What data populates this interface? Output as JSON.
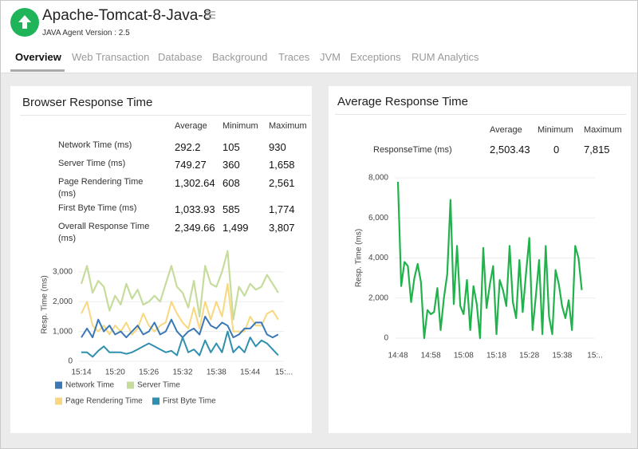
{
  "header": {
    "title": "Apache-Tomcat-8-Java-8",
    "subtitle": "JAVA Agent Version : 2.5"
  },
  "tabs": [
    "Overview",
    "Web Transaction",
    "Database",
    "Background",
    "Traces",
    "JVM",
    "Exceptions",
    "RUM Analytics"
  ],
  "panels": [
    {
      "title": "Browser Response Time",
      "table": {
        "columns": [
          "Average",
          "Minimum",
          "Maximum"
        ],
        "rows": [
          [
            "Network Time (ms)",
            "292.2",
            "105",
            "930"
          ],
          [
            "Server Time (ms)",
            "749.27",
            "360",
            "1,658"
          ],
          [
            "Page Rendering Time (ms)",
            "1,302.64",
            "608",
            "2,561"
          ],
          [
            "First Byte Time (ms)",
            "1,033.93",
            "585",
            "1,774"
          ],
          [
            "Overall Response Time (ms)",
            "2,349.66",
            "1,499",
            "3,807"
          ]
        ]
      }
    },
    {
      "title": "Average Response Time",
      "table": {
        "columns": [
          "Average",
          "Minimum",
          "Maximum"
        ],
        "rows": [
          [
            "ResponseTime (ms)",
            "2,503.43",
            "0",
            "7,815"
          ]
        ]
      }
    }
  ],
  "chart_data": [
    {
      "type": "line",
      "y_label": "Resp. Time (ms)",
      "categories": [
        "15:14",
        null,
        null,
        null,
        null,
        null,
        "15:20",
        null,
        null,
        null,
        null,
        null,
        "15:26",
        null,
        null,
        null,
        null,
        null,
        "15:32",
        null,
        null,
        null,
        null,
        null,
        "15:38",
        null,
        null,
        null,
        null,
        null,
        "15:44",
        null,
        null,
        null,
        null,
        null,
        "15:..."
      ],
      "series": [
        {
          "name": "Network Time",
          "color": "#3b78b4",
          "values": [
            800,
            1100,
            800,
            1400,
            1000,
            1200,
            900,
            1000,
            800,
            1000,
            1200,
            900,
            1000,
            1300,
            900,
            1000,
            1400,
            1000,
            800,
            1000,
            1100,
            900,
            1500,
            1200,
            1100,
            1300,
            1200,
            800,
            900,
            1100,
            1100,
            1300,
            1300,
            900,
            800,
            900,
            null
          ]
        },
        {
          "name": "Server Time",
          "color": "#c6dc9c",
          "values": [
            2600,
            3200,
            2300,
            2700,
            2500,
            1700,
            2200,
            1900,
            2600,
            2100,
            2400,
            1900,
            2000,
            2200,
            2000,
            2600,
            3200,
            2500,
            2300,
            1800,
            2700,
            1500,
            3200,
            2600,
            2500,
            3000,
            3700,
            1400,
            2500,
            2200,
            2600,
            2400,
            2500,
            2900,
            2600,
            2300,
            null
          ]
        },
        {
          "name": "Page Rendering Time",
          "color": "#f8d77f",
          "values": [
            1600,
            2000,
            1200,
            1000,
            1200,
            900,
            1200,
            1000,
            1300,
            900,
            1100,
            1600,
            1200,
            1000,
            1200,
            1300,
            2000,
            1600,
            1300,
            1100,
            1800,
            1100,
            2000,
            1400,
            2000,
            1500,
            2600,
            1000,
            1000,
            1000,
            1500,
            1200,
            1200,
            1600,
            1700,
            1400,
            null
          ]
        },
        {
          "name": "First Byte Time",
          "color": "#2f8fae",
          "values": [
            300,
            300,
            150,
            350,
            500,
            300,
            300,
            300,
            250,
            300,
            400,
            500,
            600,
            500,
            400,
            300,
            350,
            200,
            800,
            300,
            400,
            200,
            700,
            300,
            600,
            300,
            1000,
            300,
            500,
            300,
            800,
            500,
            700,
            600,
            400,
            200,
            null
          ]
        }
      ],
      "ylim": [
        0,
        3800
      ],
      "yticks": [
        0,
        {
          "value": 1000,
          "label": "1,000"
        },
        {
          "value": 2000,
          "label": "2,000"
        },
        {
          "value": 3000,
          "label": "3,000"
        }
      ],
      "grid": true
    },
    {
      "type": "line",
      "y_label": "Resp. Time (ms)",
      "categories": [
        "14:48",
        null,
        null,
        null,
        null,
        null,
        null,
        null,
        null,
        null,
        "14:58",
        null,
        null,
        null,
        null,
        null,
        null,
        null,
        null,
        null,
        "15:08",
        null,
        null,
        null,
        null,
        null,
        null,
        null,
        null,
        null,
        "15:18",
        null,
        null,
        null,
        null,
        null,
        null,
        null,
        null,
        null,
        "15:28",
        null,
        null,
        null,
        null,
        null,
        null,
        null,
        null,
        null,
        "15:38",
        null,
        null,
        null,
        null,
        null,
        null,
        null,
        null,
        null,
        "15:.."
      ],
      "series": [
        {
          "name": "ResponseTime",
          "color": "#22b24c",
          "values": [
            7800,
            2600,
            3800,
            3600,
            1800,
            3000,
            3700,
            2800,
            0,
            1400,
            1200,
            1300,
            2500,
            400,
            2000,
            3200,
            6900,
            1700,
            4600,
            1600,
            1200,
            2900,
            400,
            2600,
            1700,
            0,
            4500,
            1500,
            2700,
            3600,
            200,
            2900,
            2400,
            1600,
            4600,
            1800,
            1000,
            3900,
            1300,
            3200,
            5000,
            400,
            2100,
            3900,
            200,
            4600,
            1100,
            200,
            3400,
            2700,
            1600,
            1000,
            1900,
            400,
            4600,
            4000,
            2400,
            null,
            null,
            null,
            null
          ]
        }
      ],
      "ylim": [
        0,
        8000
      ],
      "yticks": [
        0,
        {
          "value": 2000,
          "label": "2,000"
        },
        {
          "value": 4000,
          "label": "4,000"
        },
        {
          "value": 6000,
          "label": "6,000"
        },
        {
          "value": 8000,
          "label": "8,000"
        }
      ],
      "grid": true
    }
  ]
}
